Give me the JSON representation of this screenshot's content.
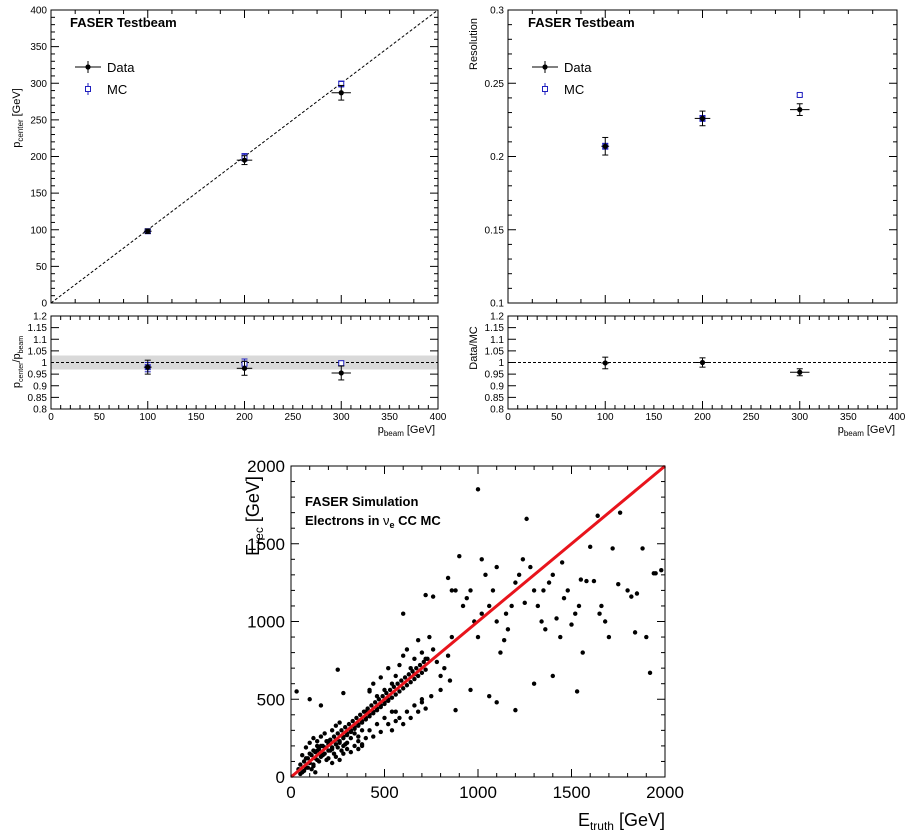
{
  "chart_data": [
    {
      "type": "scatter",
      "panel": "top-left-main",
      "title": "FASER Testbeam",
      "xlim": [
        0,
        400
      ],
      "ylim": [
        0,
        400
      ],
      "ylabel_main": "p",
      "ylabel_sub": "center",
      "ylabel_unit": "[GeV]",
      "yticks": [
        0,
        50,
        100,
        150,
        200,
        250,
        300,
        350,
        400
      ],
      "diagonal": true,
      "legend": [
        "Data",
        "MC"
      ],
      "series": [
        {
          "name": "Data",
          "x": [
            100,
            200,
            300
          ],
          "y": [
            98,
            195,
            287
          ],
          "yerr": [
            3,
            6,
            10
          ],
          "xerr": [
            4,
            8,
            10
          ]
        },
        {
          "name": "MC",
          "x": [
            100,
            200,
            300
          ],
          "y": [
            98,
            199,
            299
          ],
          "yerr": [
            2,
            5,
            4
          ]
        }
      ]
    },
    {
      "type": "scatter",
      "panel": "top-left-ratio",
      "xlim": [
        0,
        400
      ],
      "ylim": [
        0.8,
        1.2
      ],
      "ylabel_main": "p",
      "ylabel_sub": "center",
      "ylabel_mid": "/p",
      "ylabel_sub2": "beam",
      "xlabel_main": "p",
      "xlabel_sub": "beam",
      "xlabel_unit": "[GeV]",
      "xticks": [
        0,
        50,
        100,
        150,
        200,
        250,
        300,
        350,
        400
      ],
      "yticks": [
        "0.8",
        "0.85",
        "0.9",
        "0.95",
        "1",
        "1.05",
        "1.1",
        "1.15",
        "1.2"
      ],
      "band": [
        0.97,
        1.03
      ],
      "refline": 1.0,
      "series": [
        {
          "name": "Data",
          "x": [
            100,
            200,
            300
          ],
          "y": [
            0.98,
            0.975,
            0.955
          ],
          "yerr": [
            0.03,
            0.03,
            0.03
          ],
          "xerr": [
            4,
            8,
            10
          ]
        },
        {
          "name": "MC",
          "x": [
            100,
            200,
            300
          ],
          "y": [
            0.98,
            0.995,
            0.997
          ],
          "yerr": [
            0.02,
            0.02,
            0.01
          ]
        }
      ]
    },
    {
      "type": "scatter",
      "panel": "top-right-main",
      "title": "FASER Testbeam",
      "xlim": [
        0,
        400
      ],
      "ylim": [
        0.1,
        0.3
      ],
      "ylabel": "Resolution",
      "yticks": [
        "0.1",
        "0.15",
        "0.2",
        "0.25",
        "0.3"
      ],
      "legend": [
        "Data",
        "MC"
      ],
      "series": [
        {
          "name": "Data",
          "x": [
            100,
            200,
            300
          ],
          "y": [
            0.207,
            0.226,
            0.232
          ],
          "yerr": [
            0.006,
            0.005,
            0.004
          ],
          "xerr": [
            4,
            8,
            10
          ]
        },
        {
          "name": "MC",
          "x": [
            100,
            200,
            300
          ],
          "y": [
            0.207,
            0.226,
            0.242
          ],
          "yerr": [
            0.002,
            0.002,
            0.001
          ]
        }
      ]
    },
    {
      "type": "scatter",
      "panel": "top-right-ratio",
      "xlim": [
        0,
        400
      ],
      "ylim": [
        0.8,
        1.2
      ],
      "ylabel": "Data/MC",
      "xlabel_main": "p",
      "xlabel_sub": "beam",
      "xlabel_unit": "[GeV]",
      "xticks": [
        0,
        50,
        100,
        150,
        200,
        250,
        300,
        350,
        400
      ],
      "yticks": [
        "0.8",
        "0.85",
        "0.9",
        "0.95",
        "1",
        "1.05",
        "1.1",
        "1.15",
        "1.2"
      ],
      "refline": 1.0,
      "series": [
        {
          "name": "Data/MC",
          "x": [
            100,
            200,
            300
          ],
          "y": [
            0.998,
            1.0,
            0.958
          ],
          "yerr": [
            0.025,
            0.02,
            0.015
          ],
          "xerr": [
            4,
            8,
            10
          ]
        }
      ]
    },
    {
      "type": "scatter",
      "panel": "bottom",
      "title_line1": "FASER Simulation",
      "title_line2_pre": "Electrons in ",
      "title_nu": "ν",
      "title_nu_sub": "e",
      "title_line2_post": " CC MC",
      "xlim": [
        0,
        2000
      ],
      "ylim": [
        0,
        2000
      ],
      "xticks": [
        0,
        500,
        1000,
        1500,
        2000
      ],
      "yticks": [
        0,
        500,
        1000,
        1500,
        2000
      ],
      "xlabel_main": "E",
      "xlabel_sub": "truth",
      "xlabel_unit": "[GeV]",
      "ylabel_main": "E",
      "ylabel_sub": "rec",
      "ylabel_unit": "[GeV]",
      "fit_line": {
        "x": [
          0,
          2000
        ],
        "y": [
          0,
          2000
        ],
        "color": "#e8141c"
      },
      "marker_color": "#000000",
      "points": [
        [
          40,
          50
        ],
        [
          50,
          80
        ],
        [
          60,
          30
        ],
        [
          70,
          100
        ],
        [
          80,
          60
        ],
        [
          90,
          120
        ],
        [
          100,
          90
        ],
        [
          110,
          140
        ],
        [
          120,
          70
        ],
        [
          130,
          160
        ],
        [
          140,
          110
        ],
        [
          150,
          180
        ],
        [
          160,
          130
        ],
        [
          170,
          200
        ],
        [
          180,
          150
        ],
        [
          190,
          230
        ],
        [
          200,
          170
        ],
        [
          210,
          240
        ],
        [
          220,
          190
        ],
        [
          230,
          260
        ],
        [
          240,
          210
        ],
        [
          250,
          280
        ],
        [
          260,
          230
        ],
        [
          270,
          300
        ],
        [
          280,
          250
        ],
        [
          290,
          320
        ],
        [
          300,
          270
        ],
        [
          310,
          340
        ],
        [
          320,
          290
        ],
        [
          330,
          360
        ],
        [
          340,
          310
        ],
        [
          350,
          380
        ],
        [
          360,
          330
        ],
        [
          370,
          400
        ],
        [
          380,
          350
        ],
        [
          390,
          420
        ],
        [
          400,
          370
        ],
        [
          410,
          440
        ],
        [
          420,
          390
        ],
        [
          430,
          460
        ],
        [
          440,
          410
        ],
        [
          450,
          480
        ],
        [
          460,
          430
        ],
        [
          470,
          500
        ],
        [
          480,
          450
        ],
        [
          490,
          520
        ],
        [
          500,
          470
        ],
        [
          510,
          540
        ],
        [
          520,
          490
        ],
        [
          530,
          560
        ],
        [
          540,
          510
        ],
        [
          550,
          580
        ],
        [
          560,
          530
        ],
        [
          570,
          600
        ],
        [
          580,
          550
        ],
        [
          590,
          620
        ],
        [
          600,
          570
        ],
        [
          610,
          640
        ],
        [
          620,
          590
        ],
        [
          630,
          660
        ],
        [
          640,
          610
        ],
        [
          650,
          680
        ],
        [
          660,
          630
        ],
        [
          670,
          700
        ],
        [
          680,
          650
        ],
        [
          690,
          720
        ],
        [
          700,
          670
        ],
        [
          710,
          740
        ],
        [
          720,
          690
        ],
        [
          730,
          760
        ],
        [
          60,
          140
        ],
        [
          80,
          190
        ],
        [
          100,
          220
        ],
        [
          120,
          250
        ],
        [
          140,
          200
        ],
        [
          160,
          260
        ],
        [
          180,
          280
        ],
        [
          200,
          230
        ],
        [
          220,
          300
        ],
        [
          240,
          330
        ],
        [
          260,
          350
        ],
        [
          280,
          200
        ],
        [
          300,
          220
        ],
        [
          320,
          250
        ],
        [
          340,
          280
        ],
        [
          360,
          260
        ],
        [
          380,
          300
        ],
        [
          400,
          420
        ],
        [
          420,
          550
        ],
        [
          440,
          600
        ],
        [
          460,
          520
        ],
        [
          480,
          640
        ],
        [
          500,
          560
        ],
        [
          520,
          700
        ],
        [
          540,
          600
        ],
        [
          560,
          650
        ],
        [
          580,
          720
        ],
        [
          600,
          780
        ],
        [
          620,
          820
        ],
        [
          640,
          700
        ],
        [
          660,
          760
        ],
        [
          680,
          880
        ],
        [
          700,
          800
        ],
        [
          720,
          760
        ],
        [
          740,
          900
        ],
        [
          760,
          820
        ],
        [
          780,
          740
        ],
        [
          800,
          650
        ],
        [
          820,
          700
        ],
        [
          840,
          780
        ],
        [
          860,
          900
        ],
        [
          880,
          1200
        ],
        [
          900,
          1420
        ],
        [
          920,
          1100
        ],
        [
          940,
          1150
        ],
        [
          960,
          1200
        ],
        [
          980,
          1000
        ],
        [
          1000,
          900
        ],
        [
          1020,
          1050
        ],
        [
          1040,
          1300
        ],
        [
          1060,
          1100
        ],
        [
          1080,
          1200
        ],
        [
          1100,
          1000
        ],
        [
          1120,
          800
        ],
        [
          1140,
          880
        ],
        [
          1160,
          950
        ],
        [
          1180,
          1100
        ],
        [
          1200,
          1250
        ],
        [
          1220,
          1300
        ],
        [
          1240,
          1400
        ],
        [
          1260,
          1660
        ],
        [
          1280,
          1350
        ],
        [
          1300,
          1200
        ],
        [
          1320,
          1100
        ],
        [
          1340,
          1000
        ],
        [
          1360,
          950
        ],
        [
          1380,
          1250
        ],
        [
          1400,
          1300
        ],
        [
          1420,
          1020
        ],
        [
          1440,
          900
        ],
        [
          1460,
          1150
        ],
        [
          1480,
          1200
        ],
        [
          1500,
          980
        ],
        [
          1520,
          1050
        ],
        [
          1540,
          1100
        ],
        [
          1560,
          800
        ],
        [
          1580,
          1260
        ],
        [
          1600,
          1480
        ],
        [
          1620,
          1260
        ],
        [
          1640,
          1680
        ],
        [
          1660,
          1100
        ],
        [
          1680,
          1000
        ],
        [
          1700,
          900
        ],
        [
          1720,
          1470
        ],
        [
          1760,
          1700
        ],
        [
          1800,
          1200
        ],
        [
          1820,
          1160
        ],
        [
          1840,
          930
        ],
        [
          1880,
          1470
        ],
        [
          1900,
          900
        ],
        [
          1920,
          670
        ],
        [
          1940,
          1310
        ],
        [
          1980,
          1330
        ],
        [
          1000,
          1850
        ],
        [
          1020,
          1400
        ],
        [
          720,
          1170
        ],
        [
          760,
          1160
        ],
        [
          840,
          1280
        ],
        [
          860,
          1200
        ],
        [
          600,
          1050
        ],
        [
          140,
          170
        ],
        [
          160,
          150
        ],
        [
          180,
          190
        ],
        [
          200,
          210
        ],
        [
          220,
          180
        ],
        [
          240,
          240
        ],
        [
          260,
          220
        ],
        [
          280,
          260
        ],
        [
          300,
          280
        ],
        [
          320,
          300
        ],
        [
          340,
          320
        ],
        [
          360,
          340
        ],
        [
          380,
          360
        ],
        [
          400,
          380
        ],
        [
          420,
          400
        ],
        [
          440,
          420
        ],
        [
          460,
          440
        ],
        [
          480,
          460
        ],
        [
          500,
          480
        ],
        [
          520,
          500
        ],
        [
          30,
          550
        ],
        [
          100,
          500
        ],
        [
          160,
          460
        ],
        [
          250,
          690
        ],
        [
          280,
          540
        ],
        [
          420,
          560
        ],
        [
          660,
          660
        ],
        [
          700,
          480
        ],
        [
          720,
          440
        ],
        [
          750,
          520
        ],
        [
          800,
          560
        ],
        [
          850,
          620
        ],
        [
          880,
          430
        ],
        [
          960,
          560
        ],
        [
          1060,
          520
        ],
        [
          1100,
          480
        ],
        [
          1200,
          430
        ],
        [
          1530,
          550
        ],
        [
          1300,
          600
        ],
        [
          1400,
          650
        ],
        [
          540,
          300
        ],
        [
          560,
          360
        ],
        [
          580,
          380
        ],
        [
          600,
          340
        ],
        [
          620,
          420
        ],
        [
          640,
          380
        ],
        [
          660,
          460
        ],
        [
          680,
          420
        ],
        [
          700,
          500
        ],
        [
          560,
          420
        ],
        [
          360,
          180
        ],
        [
          380,
          200
        ],
        [
          400,
          250
        ],
        [
          420,
          300
        ],
        [
          440,
          260
        ],
        [
          460,
          340
        ],
        [
          480,
          290
        ],
        [
          500,
          380
        ],
        [
          520,
          340
        ],
        [
          540,
          420
        ],
        [
          120,
          80
        ],
        [
          130,
          120
        ],
        [
          150,
          100
        ],
        [
          170,
          140
        ],
        [
          190,
          110
        ],
        [
          210,
          170
        ],
        [
          230,
          150
        ],
        [
          250,
          190
        ],
        [
          270,
          170
        ],
        [
          290,
          210
        ],
        [
          200,
          120
        ],
        [
          220,
          90
        ],
        [
          240,
          130
        ],
        [
          260,
          110
        ],
        [
          280,
          150
        ],
        [
          300,
          180
        ],
        [
          320,
          160
        ],
        [
          340,
          200
        ],
        [
          360,
          230
        ],
        [
          380,
          210
        ],
        [
          50,
          20
        ],
        [
          70,
          40
        ],
        [
          90,
          60
        ],
        [
          110,
          50
        ],
        [
          130,
          30
        ],
        [
          80,
          120
        ],
        [
          100,
          150
        ],
        [
          120,
          170
        ],
        [
          140,
          230
        ],
        [
          160,
          200
        ],
        [
          1100,
          1350
        ],
        [
          1150,
          1050
        ],
        [
          1250,
          1120
        ],
        [
          1350,
          1200
        ],
        [
          1450,
          1380
        ],
        [
          1550,
          1270
        ],
        [
          1650,
          1050
        ],
        [
          1750,
          1240
        ],
        [
          1850,
          1180
        ],
        [
          1950,
          1310
        ]
      ]
    }
  ]
}
